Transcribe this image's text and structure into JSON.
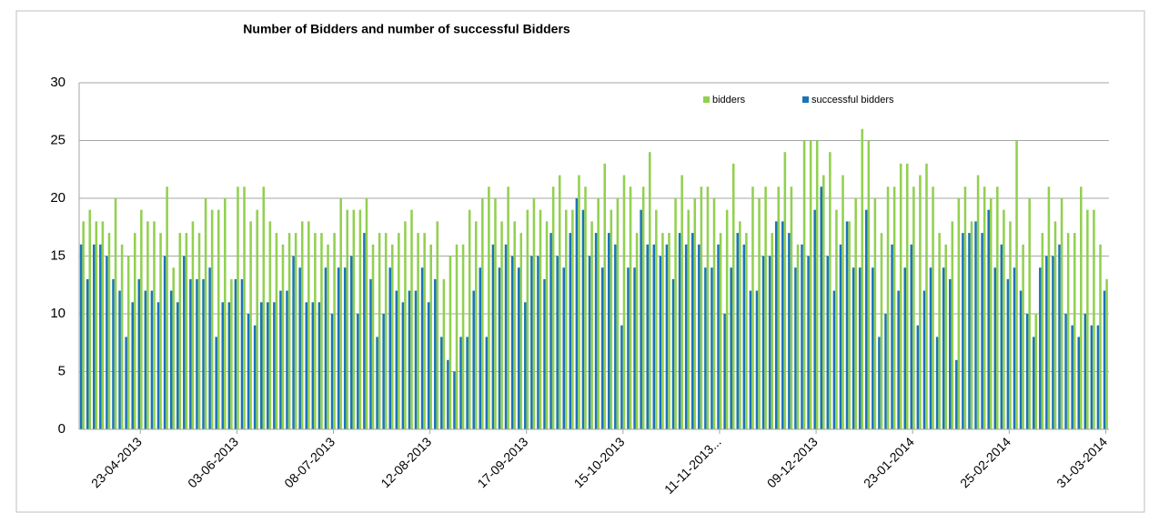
{
  "chart_data": {
    "type": "bar",
    "title": "Number of Bidders and number of successful  Bidders",
    "categories": [
      null,
      null,
      null,
      null,
      null,
      null,
      null,
      null,
      null,
      "23-04-2013",
      null,
      null,
      null,
      null,
      null,
      null,
      null,
      null,
      null,
      null,
      null,
      null,
      null,
      null,
      "03-06-2013",
      null,
      null,
      null,
      null,
      null,
      null,
      null,
      null,
      null,
      null,
      null,
      null,
      null,
      null,
      "08-07-2013",
      null,
      null,
      null,
      null,
      null,
      null,
      null,
      null,
      null,
      null,
      null,
      null,
      null,
      null,
      "12-08-2013",
      null,
      null,
      null,
      null,
      null,
      null,
      null,
      null,
      null,
      null,
      null,
      null,
      null,
      null,
      "17-09-2013",
      null,
      null,
      null,
      null,
      null,
      null,
      null,
      null,
      null,
      null,
      null,
      null,
      null,
      null,
      "15-10-2013",
      null,
      null,
      null,
      null,
      null,
      null,
      null,
      null,
      null,
      null,
      null,
      null,
      null,
      null,
      "11-11-2013...",
      null,
      null,
      null,
      null,
      null,
      null,
      null,
      null,
      null,
      null,
      null,
      null,
      null,
      null,
      "09-12-2013",
      null,
      null,
      null,
      null,
      null,
      null,
      null,
      null,
      null,
      null,
      null,
      null,
      null,
      null,
      "23-01-2014",
      null,
      null,
      null,
      null,
      null,
      null,
      null,
      null,
      null,
      null,
      null,
      null,
      null,
      null,
      "25-02-2014",
      null,
      null,
      null,
      null,
      null,
      null,
      null,
      null,
      null,
      null,
      null,
      null,
      null,
      null,
      "31-03-2014"
    ],
    "series": [
      {
        "name": "bidders",
        "color": "#92d050",
        "values": [
          18,
          19,
          18,
          18,
          17,
          20,
          16,
          15,
          17,
          19,
          18,
          18,
          17,
          21,
          14,
          17,
          17,
          18,
          17,
          20,
          19,
          19,
          20,
          13,
          21,
          21,
          18,
          19,
          21,
          18,
          17,
          16,
          17,
          17,
          18,
          18,
          17,
          17,
          16,
          17,
          20,
          19,
          19,
          19,
          20,
          16,
          17,
          17,
          16,
          17,
          18,
          19,
          17,
          17,
          16,
          18,
          13,
          15,
          16,
          16,
          19,
          18,
          20,
          21,
          20,
          18,
          21,
          18,
          17,
          19,
          20,
          19,
          18,
          21,
          22,
          19,
          19,
          22,
          21,
          18,
          20,
          23,
          19,
          20,
          22,
          21,
          17,
          21,
          24,
          19,
          17,
          17,
          20,
          22,
          19,
          20,
          21,
          21,
          20,
          17,
          19,
          23,
          18,
          17,
          21,
          20,
          21,
          17,
          21,
          24,
          21,
          16,
          25,
          25,
          25,
          22,
          24,
          19,
          22,
          18,
          20,
          26,
          25,
          20,
          17,
          21,
          21,
          23,
          23,
          21,
          22,
          23,
          21,
          17,
          16,
          18,
          20,
          21,
          18,
          22,
          21,
          20,
          21,
          19,
          18,
          25,
          16,
          20,
          10,
          17,
          21,
          18,
          20,
          17,
          17,
          21,
          19,
          19,
          16,
          13
        ]
      },
      {
        "name": "successful bidders",
        "color": "#1a74b8",
        "values": [
          16,
          13,
          16,
          16,
          15,
          13,
          12,
          8,
          11,
          13,
          12,
          12,
          11,
          15,
          12,
          11,
          15,
          13,
          13,
          13,
          14,
          8,
          11,
          11,
          13,
          13,
          10,
          9,
          11,
          11,
          11,
          12,
          12,
          15,
          14,
          11,
          11,
          11,
          14,
          10,
          14,
          14,
          15,
          10,
          17,
          13,
          8,
          10,
          14,
          12,
          11,
          12,
          12,
          14,
          11,
          13,
          8,
          6,
          5,
          8,
          8,
          12,
          14,
          8,
          16,
          14,
          16,
          15,
          14,
          11,
          15,
          15,
          13,
          17,
          15,
          14,
          17,
          20,
          19,
          15,
          17,
          14,
          17,
          16,
          9,
          14,
          14,
          19,
          16,
          16,
          15,
          16,
          13,
          17,
          16,
          17,
          16,
          14,
          14,
          16,
          10,
          14,
          17,
          16,
          12,
          12,
          15,
          15,
          18,
          18,
          17,
          14,
          16,
          15,
          19,
          21,
          15,
          12,
          16,
          18,
          14,
          14,
          19,
          14,
          8,
          10,
          16,
          12,
          14,
          16,
          9,
          12,
          14,
          8,
          14,
          13,
          6,
          17,
          17,
          18,
          17,
          19,
          14,
          16,
          13,
          14,
          12,
          10,
          8,
          14,
          15,
          15,
          16,
          10,
          9,
          8,
          10,
          9,
          9,
          12
        ]
      }
    ],
    "ylim": [
      0,
      30
    ],
    "yticks": [
      0,
      5,
      10,
      15,
      20,
      25,
      30
    ],
    "grid": true
  }
}
